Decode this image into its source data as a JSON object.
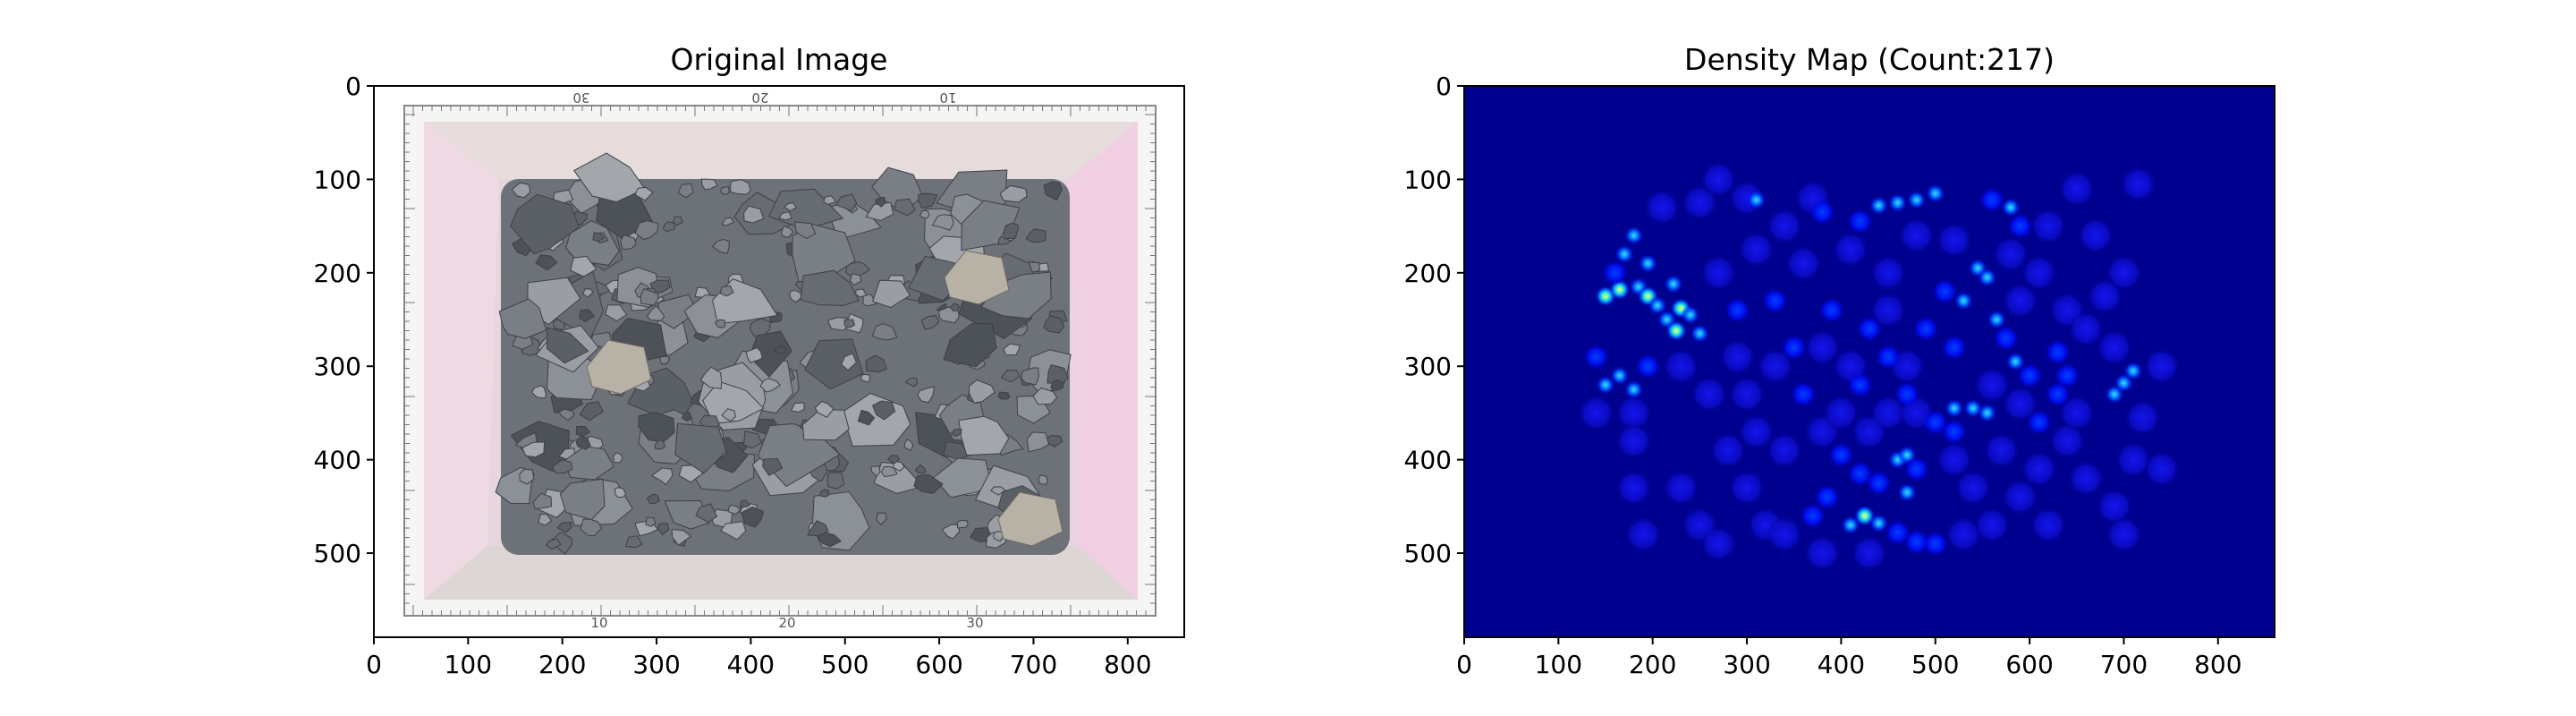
{
  "chart_data": [
    {
      "type": "image",
      "title": "Original Image",
      "xlim": [
        0,
        860
      ],
      "ylim": [
        590,
        0
      ],
      "xticks": [
        0,
        100,
        200,
        300,
        400,
        500,
        600,
        700,
        800
      ],
      "yticks": [
        0,
        100,
        200,
        300,
        400,
        500
      ],
      "image_description": "tray of gray rocks on pink-tinted floor surrounded by measuring rulers",
      "ruler_labels": [
        "10",
        "20",
        "30"
      ],
      "colors": {
        "tray": "#e8d8dc",
        "rock": "#6d7178",
        "ruler": "#f4f4f4"
      }
    },
    {
      "type": "heatmap",
      "title": "Density Map (Count:217)",
      "count": 217,
      "colormap": "jet",
      "xlim": [
        0,
        860
      ],
      "ylim": [
        590,
        0
      ],
      "xticks": [
        0,
        100,
        200,
        300,
        400,
        500,
        600,
        700,
        800
      ],
      "yticks": [
        0,
        100,
        200,
        300,
        400,
        500
      ],
      "hotspots": [
        {
          "x": 150,
          "y": 225,
          "v": 0.9
        },
        {
          "x": 165,
          "y": 218,
          "v": 0.8
        },
        {
          "x": 185,
          "y": 215,
          "v": 0.7
        },
        {
          "x": 195,
          "y": 225,
          "v": 0.75
        },
        {
          "x": 205,
          "y": 235,
          "v": 0.6
        },
        {
          "x": 215,
          "y": 250,
          "v": 0.7
        },
        {
          "x": 225,
          "y": 262,
          "v": 0.8
        },
        {
          "x": 230,
          "y": 238,
          "v": 1.0
        },
        {
          "x": 222,
          "y": 212,
          "v": 0.7
        },
        {
          "x": 240,
          "y": 245,
          "v": 0.55
        },
        {
          "x": 250,
          "y": 265,
          "v": 0.5
        },
        {
          "x": 170,
          "y": 180,
          "v": 0.6
        },
        {
          "x": 180,
          "y": 160,
          "v": 0.5
        },
        {
          "x": 195,
          "y": 190,
          "v": 0.5
        },
        {
          "x": 160,
          "y": 200,
          "v": 0.45
        },
        {
          "x": 150,
          "y": 320,
          "v": 0.6
        },
        {
          "x": 165,
          "y": 310,
          "v": 0.5
        },
        {
          "x": 180,
          "y": 325,
          "v": 0.5
        },
        {
          "x": 195,
          "y": 300,
          "v": 0.4
        },
        {
          "x": 140,
          "y": 290,
          "v": 0.4
        },
        {
          "x": 290,
          "y": 240,
          "v": 0.4
        },
        {
          "x": 310,
          "y": 122,
          "v": 0.55
        },
        {
          "x": 380,
          "y": 135,
          "v": 0.45
        },
        {
          "x": 420,
          "y": 145,
          "v": 0.45
        },
        {
          "x": 440,
          "y": 128,
          "v": 0.5
        },
        {
          "x": 460,
          "y": 125,
          "v": 0.55
        },
        {
          "x": 480,
          "y": 122,
          "v": 0.5
        },
        {
          "x": 500,
          "y": 115,
          "v": 0.5
        },
        {
          "x": 560,
          "y": 122,
          "v": 0.45
        },
        {
          "x": 580,
          "y": 130,
          "v": 0.5
        },
        {
          "x": 590,
          "y": 150,
          "v": 0.45
        },
        {
          "x": 510,
          "y": 220,
          "v": 0.45
        },
        {
          "x": 530,
          "y": 230,
          "v": 0.5
        },
        {
          "x": 545,
          "y": 195,
          "v": 0.7
        },
        {
          "x": 555,
          "y": 205,
          "v": 0.6
        },
        {
          "x": 565,
          "y": 250,
          "v": 0.5
        },
        {
          "x": 575,
          "y": 270,
          "v": 0.45
        },
        {
          "x": 585,
          "y": 295,
          "v": 0.5
        },
        {
          "x": 600,
          "y": 310,
          "v": 0.45
        },
        {
          "x": 520,
          "y": 345,
          "v": 0.5
        },
        {
          "x": 540,
          "y": 345,
          "v": 0.7
        },
        {
          "x": 555,
          "y": 350,
          "v": 0.6
        },
        {
          "x": 500,
          "y": 360,
          "v": 0.45
        },
        {
          "x": 520,
          "y": 370,
          "v": 0.45
        },
        {
          "x": 630,
          "y": 285,
          "v": 0.4
        },
        {
          "x": 640,
          "y": 310,
          "v": 0.4
        },
        {
          "x": 690,
          "y": 330,
          "v": 0.7
        },
        {
          "x": 700,
          "y": 318,
          "v": 0.6
        },
        {
          "x": 710,
          "y": 305,
          "v": 0.7
        },
        {
          "x": 400,
          "y": 395,
          "v": 0.45
        },
        {
          "x": 420,
          "y": 415,
          "v": 0.4
        },
        {
          "x": 440,
          "y": 425,
          "v": 0.45
        },
        {
          "x": 460,
          "y": 400,
          "v": 0.5
        },
        {
          "x": 470,
          "y": 395,
          "v": 0.6
        },
        {
          "x": 480,
          "y": 410,
          "v": 0.45
        },
        {
          "x": 470,
          "y": 435,
          "v": 0.5
        },
        {
          "x": 410,
          "y": 470,
          "v": 0.6
        },
        {
          "x": 425,
          "y": 460,
          "v": 0.75
        },
        {
          "x": 440,
          "y": 468,
          "v": 0.55
        },
        {
          "x": 460,
          "y": 478,
          "v": 0.45
        },
        {
          "x": 480,
          "y": 488,
          "v": 0.45
        },
        {
          "x": 500,
          "y": 490,
          "v": 0.45
        },
        {
          "x": 385,
          "y": 440,
          "v": 0.4
        },
        {
          "x": 370,
          "y": 460,
          "v": 0.4
        },
        {
          "x": 330,
          "y": 230,
          "v": 0.35
        },
        {
          "x": 350,
          "y": 280,
          "v": 0.35
        },
        {
          "x": 390,
          "y": 240,
          "v": 0.35
        },
        {
          "x": 430,
          "y": 260,
          "v": 0.35
        },
        {
          "x": 450,
          "y": 290,
          "v": 0.35
        },
        {
          "x": 490,
          "y": 260,
          "v": 0.35
        },
        {
          "x": 520,
          "y": 280,
          "v": 0.35
        },
        {
          "x": 360,
          "y": 330,
          "v": 0.3
        },
        {
          "x": 420,
          "y": 320,
          "v": 0.3
        },
        {
          "x": 470,
          "y": 330,
          "v": 0.3
        },
        {
          "x": 630,
          "y": 330,
          "v": 0.35
        },
        {
          "x": 610,
          "y": 360,
          "v": 0.35
        }
      ],
      "blobs": [
        {
          "x": 210,
          "y": 130
        },
        {
          "x": 250,
          "y": 125
        },
        {
          "x": 300,
          "y": 120
        },
        {
          "x": 340,
          "y": 150
        },
        {
          "x": 370,
          "y": 120
        },
        {
          "x": 410,
          "y": 175
        },
        {
          "x": 450,
          "y": 200
        },
        {
          "x": 480,
          "y": 160
        },
        {
          "x": 520,
          "y": 165
        },
        {
          "x": 620,
          "y": 150
        },
        {
          "x": 650,
          "y": 110
        },
        {
          "x": 670,
          "y": 160
        },
        {
          "x": 680,
          "y": 225
        },
        {
          "x": 640,
          "y": 240
        },
        {
          "x": 610,
          "y": 200
        },
        {
          "x": 580,
          "y": 180
        },
        {
          "x": 270,
          "y": 100
        },
        {
          "x": 310,
          "y": 175
        },
        {
          "x": 270,
          "y": 200
        },
        {
          "x": 360,
          "y": 190
        },
        {
          "x": 290,
          "y": 290
        },
        {
          "x": 300,
          "y": 330
        },
        {
          "x": 260,
          "y": 330
        },
        {
          "x": 230,
          "y": 300
        },
        {
          "x": 180,
          "y": 350
        },
        {
          "x": 140,
          "y": 350
        },
        {
          "x": 180,
          "y": 380
        },
        {
          "x": 180,
          "y": 430
        },
        {
          "x": 190,
          "y": 480
        },
        {
          "x": 230,
          "y": 430
        },
        {
          "x": 250,
          "y": 470
        },
        {
          "x": 270,
          "y": 490
        },
        {
          "x": 280,
          "y": 390
        },
        {
          "x": 300,
          "y": 430
        },
        {
          "x": 320,
          "y": 470
        },
        {
          "x": 340,
          "y": 480
        },
        {
          "x": 310,
          "y": 370
        },
        {
          "x": 340,
          "y": 390
        },
        {
          "x": 380,
          "y": 370
        },
        {
          "x": 400,
          "y": 350
        },
        {
          "x": 430,
          "y": 370
        },
        {
          "x": 450,
          "y": 350
        },
        {
          "x": 480,
          "y": 350
        },
        {
          "x": 520,
          "y": 400
        },
        {
          "x": 540,
          "y": 430
        },
        {
          "x": 530,
          "y": 480
        },
        {
          "x": 560,
          "y": 470
        },
        {
          "x": 590,
          "y": 440
        },
        {
          "x": 610,
          "y": 410
        },
        {
          "x": 570,
          "y": 390
        },
        {
          "x": 640,
          "y": 380
        },
        {
          "x": 660,
          "y": 420
        },
        {
          "x": 690,
          "y": 450
        },
        {
          "x": 700,
          "y": 480
        },
        {
          "x": 710,
          "y": 400
        },
        {
          "x": 740,
          "y": 410
        },
        {
          "x": 720,
          "y": 355
        },
        {
          "x": 740,
          "y": 300
        },
        {
          "x": 690,
          "y": 280
        },
        {
          "x": 660,
          "y": 260
        },
        {
          "x": 700,
          "y": 200
        },
        {
          "x": 715,
          "y": 105
        },
        {
          "x": 590,
          "y": 230
        },
        {
          "x": 450,
          "y": 240
        },
        {
          "x": 380,
          "y": 280
        },
        {
          "x": 330,
          "y": 300
        },
        {
          "x": 410,
          "y": 300
        },
        {
          "x": 470,
          "y": 300
        },
        {
          "x": 560,
          "y": 320
        },
        {
          "x": 590,
          "y": 340
        },
        {
          "x": 650,
          "y": 350
        },
        {
          "x": 620,
          "y": 470
        },
        {
          "x": 430,
          "y": 500
        },
        {
          "x": 380,
          "y": 500
        }
      ]
    }
  ]
}
